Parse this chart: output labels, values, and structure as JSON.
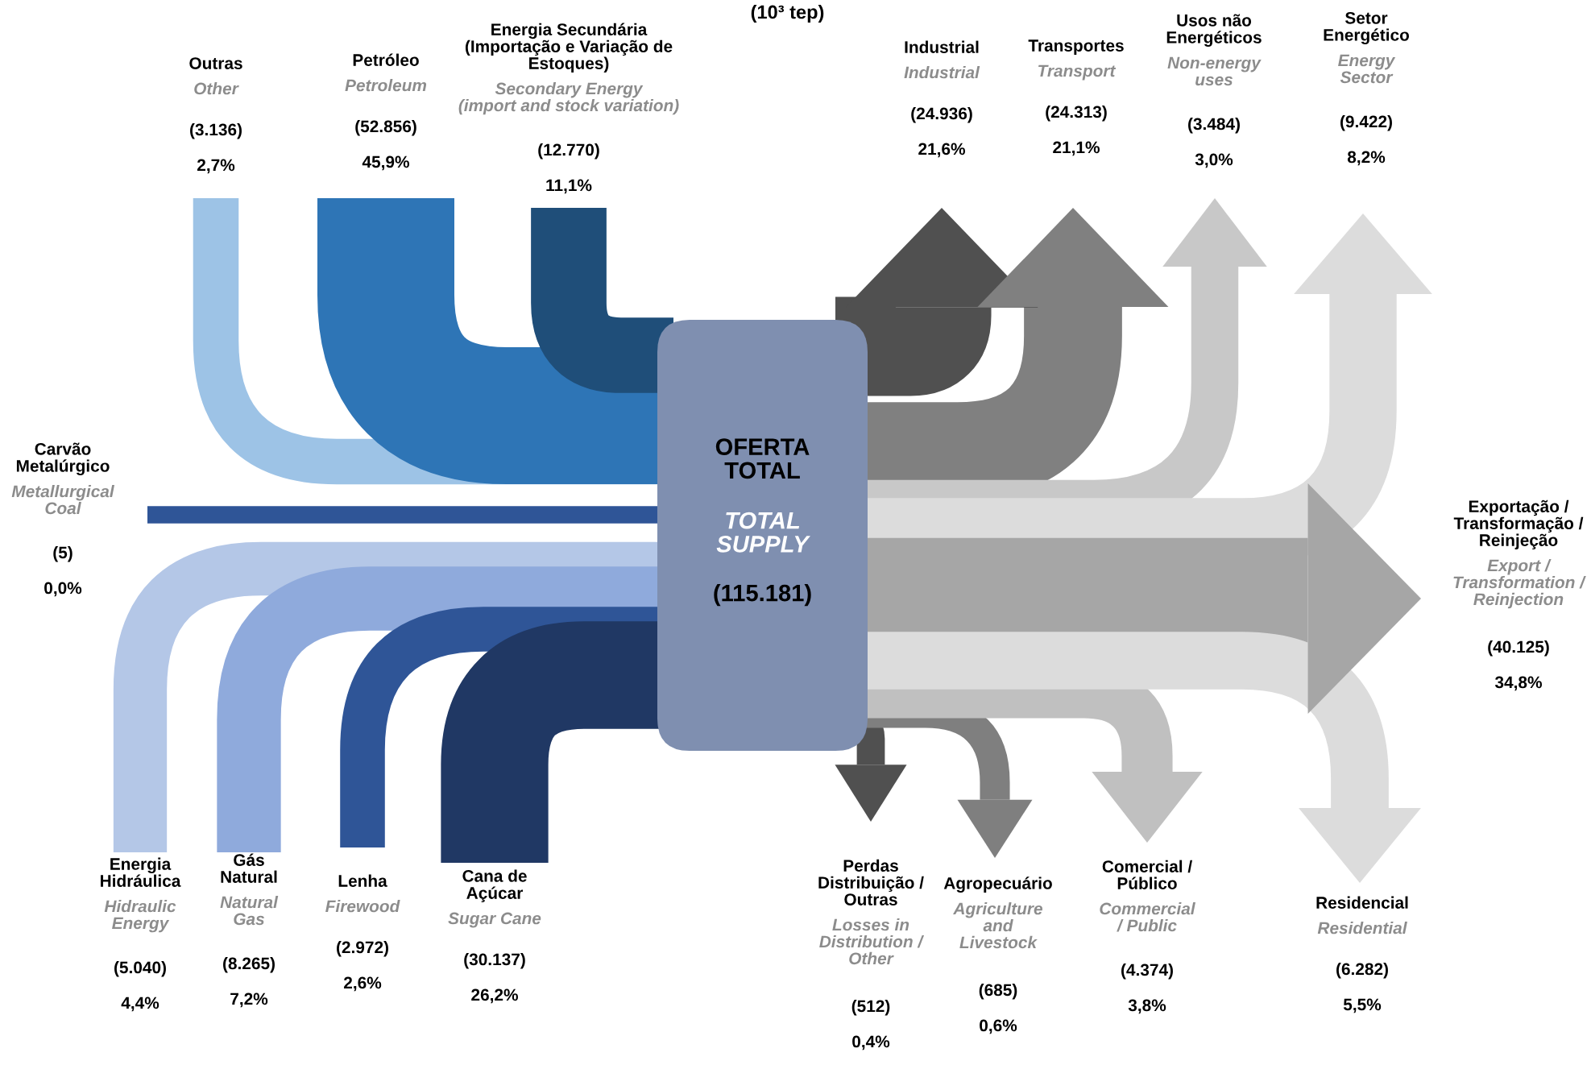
{
  "chart_data": {
    "type": "other",
    "title": "(10³ tep)",
    "categories": [
      "Outras",
      "Petróleo",
      "Energia Secundária\n(Importação e Variação de\nEstoques)",
      "Carvão\nMetalúrgico",
      "Energia\nHidráulica",
      "Gás\nNatural",
      "Lenha",
      "Cana de\nAçúcar",
      "OFERTA\nTOTAL",
      "Industrial",
      "Transportes",
      "Usos não\nEnergéticos",
      "Setor\nEnergético",
      "Exportação /\nTransformação /\nReinjeção",
      "Perdas\nDistribuição /\nOutras",
      "Agropecuário",
      "Comercial /\nPúblico",
      "Residencial"
    ],
    "annotations": [
      "Other",
      "Petroleum",
      "Secondary Energy\n(import and stock variation)",
      "Metallurgical\nCoal",
      "Hidraulic\nEnergy",
      "Natural\nGas",
      "Firewood",
      "Sugar Cane",
      "TOTAL\nSUPPLY",
      "Industrial",
      "Transport",
      "Non-energy\nuses",
      "Energy\nSector",
      "Export /\nTransformation /\nReinjection",
      "Losses in\nDistribution /\nOther",
      "Agriculture\nand\nLivestock",
      "Commercial\n/ Public",
      "Residential"
    ],
    "colors": [
      "#9dc3e6",
      "#2e75b6",
      "#1f4e79",
      "#2f5597",
      "#b4c7e7",
      "#8faadc",
      "#2f5597",
      "#203864",
      "#7f8fb0",
      "#505050",
      "#808080",
      "#c8c8c8",
      "#dcdcdc",
      "#a6a6a6",
      "#505050",
      "#7f7f7f",
      "#c0c0c0",
      "#dcdcdc"
    ],
    "series": [
      {
        "values": [
          3136,
          52856,
          12770,
          5,
          5040,
          8265,
          2972,
          30137,
          115181,
          24936,
          24313,
          3484,
          9422,
          40125,
          512,
          685,
          4374,
          6282
        ],
        "value_labels": [
          "(3.136)",
          "(52.856)",
          "(12.770)",
          "(5)",
          "(5.040)",
          "(8.265)",
          "(2.972)",
          "(30.137)",
          "(115.181)",
          "(24.936)",
          "(24.313)",
          "(3.484)",
          "(9.422)",
          "(40.125)",
          "(512)",
          "(685)",
          "(4.374)",
          "(6.282)"
        ]
      },
      {
        "values": [
          2.7,
          45.9,
          11.1,
          0.0,
          4.4,
          7.2,
          2.6,
          26.2,
          null,
          21.6,
          21.1,
          3.0,
          8.2,
          34.8,
          0.4,
          0.6,
          3.8,
          5.5
        ],
        "value_labels": [
          "2,7%",
          "45,9%",
          "11,1%",
          "0,0%",
          "4,4%",
          "7,2%",
          "2,6%",
          "26,2%",
          null,
          "21,6%",
          "21,1%",
          "3,0%",
          "8,2%",
          "34,8%",
          "0,4%",
          "0,6%",
          "3,8%",
          "5,5%"
        ]
      }
    ]
  }
}
